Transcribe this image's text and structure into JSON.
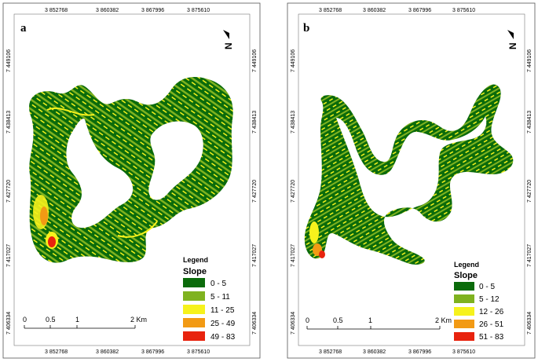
{
  "panels": [
    {
      "id": "a",
      "label": "a",
      "top_ticks": [
        "3 852768",
        "3 860382",
        "3 867996",
        "3 875610"
      ],
      "bottom_ticks": [
        "3 852768",
        "3 860382",
        "3 867996",
        "3 875610"
      ],
      "left_ticks": [
        "7 449106",
        "7 438413",
        "7 427720",
        "7 417027",
        "7 406334"
      ],
      "right_ticks": [
        "7 449106",
        "7 438413",
        "7 427720",
        "7 417027",
        "7 406334"
      ],
      "north_symbol": "N",
      "legend": {
        "title": "Legend",
        "subtitle": "Slope",
        "items": [
          {
            "label": "0 - 5",
            "color": "#0b6b0b"
          },
          {
            "label": "5 - 11",
            "color": "#7fb21f"
          },
          {
            "label": "11 - 25",
            "color": "#f6f21c"
          },
          {
            "label": "25 - 49",
            "color": "#f29a14"
          },
          {
            "label": "49 - 83",
            "color": "#e8230e"
          }
        ]
      },
      "scalebar": {
        "labels": [
          "0",
          "0.5",
          "1",
          "2 Km"
        ]
      }
    },
    {
      "id": "b",
      "label": "b",
      "top_ticks": [
        "3 852768",
        "3 860382",
        "3 867996",
        "3 875610"
      ],
      "bottom_ticks": [
        "3 852768",
        "3 860382",
        "3 867996",
        "3 875610"
      ],
      "left_ticks": [
        "7 449106",
        "7 438413",
        "7 427720",
        "7 417027",
        "7 406334"
      ],
      "right_ticks": [
        "7 449106",
        "7 438413",
        "7 427720",
        "7 417027",
        "7 406334"
      ],
      "north_symbol": "N",
      "legend": {
        "title": "Legend",
        "subtitle": "Slope",
        "items": [
          {
            "label": "0 - 5",
            "color": "#0b6b0b"
          },
          {
            "label": "5 - 12",
            "color": "#7fb21f"
          },
          {
            "label": "12 - 26",
            "color": "#f6f21c"
          },
          {
            "label": "26 - 51",
            "color": "#f29a14"
          },
          {
            "label": "51 - 83",
            "color": "#e8230e"
          }
        ]
      },
      "scalebar": {
        "labels": [
          "0",
          "0.5",
          "1",
          "2 Km"
        ]
      }
    }
  ]
}
